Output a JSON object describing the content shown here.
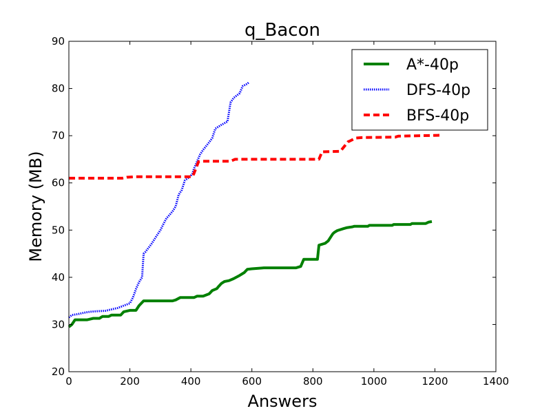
{
  "chart_data": {
    "type": "line",
    "title": "q_Bacon",
    "xlabel": "Answers",
    "ylabel": "Memory (MB)",
    "xlim": [
      0,
      1400
    ],
    "ylim": [
      20,
      90
    ],
    "xticks": [
      "0",
      "200",
      "400",
      "600",
      "800",
      "1000",
      "1200",
      "1400"
    ],
    "yticks": [
      "20",
      "30",
      "40",
      "50",
      "60",
      "70",
      "80",
      "90"
    ],
    "grid": false,
    "legend_position": "top-right",
    "series": [
      {
        "name": "A*-40p",
        "color": "#008000",
        "style": "solid",
        "x": [
          0,
          10,
          20,
          60,
          80,
          100,
          110,
          130,
          140,
          170,
          180,
          200,
          220,
          230,
          245,
          340,
          350,
          365,
          410,
          420,
          440,
          460,
          470,
          485,
          490,
          500,
          510,
          525,
          540,
          560,
          575,
          585,
          600,
          640,
          745,
          760,
          770,
          815,
          820,
          840,
          850,
          860,
          865,
          870,
          880,
          900,
          910,
          930,
          935,
          980,
          985,
          1060,
          1065,
          1120,
          1125,
          1170,
          1180,
          1190
        ],
        "y": [
          29.5,
          30,
          31,
          31,
          31.3,
          31.3,
          31.7,
          31.7,
          32,
          32,
          32.7,
          33,
          33,
          34,
          35,
          35,
          35.2,
          35.7,
          35.7,
          36,
          36,
          36.5,
          37.2,
          37.6,
          38,
          38.7,
          39.1,
          39.3,
          39.7,
          40.4,
          41,
          41.7,
          41.8,
          42,
          42,
          42.3,
          43.8,
          43.8,
          46.8,
          47.2,
          47.7,
          48.7,
          49.2,
          49.5,
          49.9,
          50.3,
          50.5,
          50.7,
          50.8,
          50.8,
          51,
          51,
          51.2,
          51.2,
          51.4,
          51.4,
          51.7,
          51.8
        ]
      },
      {
        "name": "DFS-40p",
        "color": "#0000ff",
        "style": "dotted",
        "x": [
          0,
          10,
          30,
          50,
          70,
          90,
          120,
          140,
          160,
          180,
          200,
          210,
          220,
          230,
          240,
          245,
          250,
          270,
          280,
          290,
          300,
          310,
          320,
          330,
          340,
          350,
          360,
          370,
          380,
          390,
          400,
          405,
          410,
          420,
          430,
          440,
          450,
          460,
          470,
          480,
          500,
          520,
          530,
          540,
          550,
          560,
          570,
          585,
          590
        ],
        "y": [
          31.5,
          32,
          32.2,
          32.5,
          32.7,
          32.8,
          32.9,
          33.2,
          33.5,
          34,
          34.5,
          35.7,
          37.5,
          39,
          40,
          45,
          45.3,
          47,
          48,
          49,
          50,
          51.3,
          52.5,
          53.2,
          54,
          55,
          57.5,
          58.5,
          60.5,
          61,
          61.5,
          62,
          63,
          64.5,
          66,
          67,
          67.8,
          68.6,
          69.5,
          71.5,
          72.3,
          73,
          77,
          78,
          78.5,
          79,
          80.5,
          81,
          81.3
        ]
      },
      {
        "name": "BFS-40p",
        "color": "#ff0000",
        "style": "dashed",
        "x": [
          0,
          80,
          175,
          190,
          215,
          300,
          395,
          405,
          410,
          425,
          440,
          530,
          545,
          820,
          830,
          890,
          900,
          915,
          925,
          940,
          960,
          1070,
          1080,
          1220
        ],
        "y": [
          61,
          61,
          61,
          61.2,
          61.3,
          61.3,
          61.3,
          61.3,
          62,
          64.5,
          64.6,
          64.6,
          65,
          65,
          66.6,
          66.7,
          67.5,
          68.7,
          69,
          69.5,
          69.6,
          69.7,
          69.9,
          70.1
        ]
      }
    ]
  }
}
